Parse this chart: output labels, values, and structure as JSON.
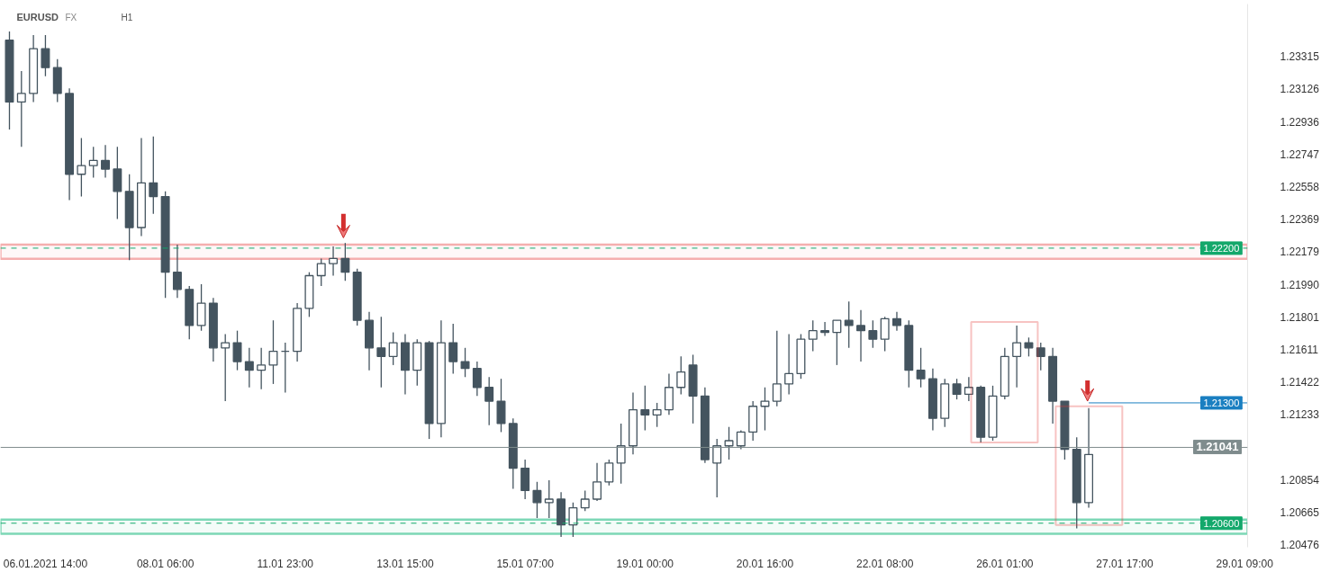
{
  "chart_data": {
    "type": "candlestick",
    "title": "EURUSD",
    "annotations": [
      "FX",
      "H1"
    ],
    "color": "#44545f",
    "categories": [
      null,
      null,
      null,
      "06.01.2021 14:00",
      null,
      null,
      null,
      null,
      null,
      null,
      null,
      null,
      null,
      "08.01 06:00",
      null,
      null,
      null,
      null,
      null,
      null,
      null,
      null,
      null,
      "11.01 23:00",
      null,
      null,
      null,
      null,
      null,
      null,
      null,
      null,
      null,
      "13.01 15:00",
      null,
      null,
      null,
      null,
      null,
      null,
      null,
      null,
      null,
      "15.01 07:00",
      null,
      null,
      null,
      null,
      null,
      null,
      null,
      null,
      null,
      "19.01 00:00",
      null,
      null,
      null,
      null,
      null,
      null,
      null,
      null,
      null,
      "20.01 16:00",
      null,
      null,
      null,
      null,
      null,
      null,
      null,
      null,
      null,
      "22.01 08:00",
      null,
      null,
      null,
      null,
      null,
      null,
      null,
      null,
      null,
      "26.01 01:00",
      null,
      null,
      null,
      null,
      null,
      null,
      null,
      null,
      null,
      "27.01 17:00",
      null,
      null,
      null,
      null,
      null,
      null,
      null,
      null,
      null,
      "29.01 09:00"
    ],
    "ohlc": [
      [
        1.2341,
        1.2346,
        1.2289,
        1.2305
      ],
      [
        1.2305,
        1.2323,
        1.2279,
        1.231
      ],
      [
        1.231,
        1.2344,
        1.2305,
        1.2336
      ],
      [
        1.2336,
        1.2344,
        1.232,
        1.2325
      ],
      [
        1.2325,
        1.233,
        1.2305,
        1.231
      ],
      [
        1.231,
        1.2313,
        1.2248,
        1.2263
      ],
      [
        1.2263,
        1.2284,
        1.225,
        1.2268
      ],
      [
        1.2268,
        1.2279,
        1.2261,
        1.2271
      ],
      [
        1.2271,
        1.228,
        1.2261,
        1.2266
      ],
      [
        1.2266,
        1.2279,
        1.2237,
        1.2253
      ],
      [
        1.2253,
        1.2263,
        1.2213,
        1.2232
      ],
      [
        1.2232,
        1.2284,
        1.2227,
        1.2258
      ],
      [
        1.2258,
        1.2285,
        1.224,
        1.225
      ],
      [
        1.225,
        1.2253,
        1.2191,
        1.2206
      ],
      [
        1.2206,
        1.2222,
        1.2191,
        1.2196
      ],
      [
        1.2196,
        1.2198,
        1.2167,
        1.2175
      ],
      [
        1.2175,
        1.2199,
        1.2172,
        1.2188
      ],
      [
        1.2188,
        1.2191,
        1.2154,
        1.2162
      ],
      [
        1.2162,
        1.217,
        1.2131,
        1.2165
      ],
      [
        1.2165,
        1.2172,
        1.2149,
        1.2154
      ],
      [
        1.2154,
        1.2162,
        1.2139,
        1.2149
      ],
      [
        1.2149,
        1.2162,
        1.2138,
        1.2152
      ],
      [
        1.2152,
        1.2178,
        1.2141,
        1.216
      ],
      [
        1.216,
        1.2165,
        1.2136,
        1.216
      ],
      [
        1.216,
        1.2188,
        1.2154,
        1.2185
      ],
      [
        1.2185,
        1.2206,
        1.218,
        1.2204
      ],
      [
        1.2204,
        1.2214,
        1.2198,
        1.2211
      ],
      [
        1.2211,
        1.2221,
        1.2204,
        1.2214
      ],
      [
        1.2214,
        1.2223,
        1.2201,
        1.2206
      ],
      [
        1.2206,
        1.2208,
        1.2175,
        1.2178
      ],
      [
        1.2178,
        1.2183,
        1.2149,
        1.2162
      ],
      [
        1.2162,
        1.218,
        1.2139,
        1.2157
      ],
      [
        1.2157,
        1.2171,
        1.2152,
        1.2165
      ],
      [
        1.2165,
        1.217,
        1.2135,
        1.2149
      ],
      [
        1.2149,
        1.2167,
        1.214,
        1.2165
      ],
      [
        1.2165,
        1.2166,
        1.2109,
        1.2118
      ],
      [
        1.2118,
        1.2178,
        1.211,
        1.2165
      ],
      [
        1.2165,
        1.2176,
        1.2147,
        1.2154
      ],
      [
        1.2154,
        1.2162,
        1.2145,
        1.215
      ],
      [
        1.215,
        1.2154,
        1.2134,
        1.2139
      ],
      [
        1.2139,
        1.2145,
        1.2117,
        1.2131
      ],
      [
        1.2131,
        1.2144,
        1.2113,
        1.2118
      ],
      [
        1.2118,
        1.2121,
        1.208,
        1.2092
      ],
      [
        1.2092,
        1.2097,
        1.2074,
        1.2079
      ],
      [
        1.2079,
        1.2084,
        1.2063,
        1.2072
      ],
      [
        1.2072,
        1.2085,
        1.2063,
        1.2074
      ],
      [
        1.2074,
        1.2078,
        1.2052,
        1.2059
      ],
      [
        1.2059,
        1.2072,
        1.2052,
        1.2069
      ],
      [
        1.2069,
        1.2079,
        1.2067,
        1.2074
      ],
      [
        1.2074,
        1.2095,
        1.2073,
        1.2084
      ],
      [
        1.2084,
        1.2097,
        1.2082,
        1.2095
      ],
      [
        1.2095,
        1.2118,
        1.2083,
        1.2105
      ],
      [
        1.2105,
        1.2136,
        1.21,
        1.2126
      ],
      [
        1.2126,
        1.214,
        1.2114,
        1.2123
      ],
      [
        1.2123,
        1.213,
        1.2116,
        1.2126
      ],
      [
        1.2126,
        1.2147,
        1.2123,
        1.2139
      ],
      [
        1.2139,
        1.2157,
        1.2135,
        1.2148
      ],
      [
        1.2152,
        1.2158,
        1.2118,
        1.2134
      ],
      [
        1.2134,
        1.2139,
        1.2095,
        1.2097
      ],
      [
        1.2095,
        1.2109,
        1.2075,
        1.2105
      ],
      [
        1.2105,
        1.2116,
        1.2097,
        1.2108
      ],
      [
        1.2105,
        1.2114,
        1.2103,
        1.2113
      ],
      [
        1.2113,
        1.2131,
        1.2108,
        1.2128
      ],
      [
        1.2128,
        1.2139,
        1.2114,
        1.2131
      ],
      [
        1.2131,
        1.2172,
        1.2128,
        1.2141
      ],
      [
        1.2141,
        1.217,
        1.2135,
        1.2147
      ],
      [
        1.2147,
        1.217,
        1.2144,
        1.2167
      ],
      [
        1.2167,
        1.2178,
        1.216,
        1.2172
      ],
      [
        1.2172,
        1.2177,
        1.2169,
        1.2171
      ],
      [
        1.2171,
        1.2178,
        1.2152,
        1.2178
      ],
      [
        1.2178,
        1.2189,
        1.2162,
        1.2175
      ],
      [
        1.2175,
        1.2184,
        1.2154,
        1.2172
      ],
      [
        1.2172,
        1.2178,
        1.2162,
        1.2167
      ],
      [
        1.2167,
        1.218,
        1.216,
        1.2179
      ],
      [
        1.2179,
        1.2183,
        1.2172,
        1.2175
      ],
      [
        1.2175,
        1.2178,
        1.2139,
        1.2149
      ],
      [
        1.2149,
        1.2162,
        1.2139,
        1.2144
      ],
      [
        1.2144,
        1.215,
        1.2114,
        1.2121
      ],
      [
        1.2121,
        1.2144,
        1.2116,
        1.2141
      ],
      [
        1.2141,
        1.2144,
        1.2132,
        1.2135
      ],
      [
        1.2135,
        1.2145,
        1.2131,
        1.2139
      ],
      [
        1.2139,
        1.214,
        1.2107,
        1.211
      ],
      [
        1.211,
        1.214,
        1.2108,
        1.2134
      ],
      [
        1.2134,
        1.2162,
        1.2132,
        1.2157
      ],
      [
        1.2157,
        1.2175,
        1.2139,
        1.2165
      ],
      [
        1.2165,
        1.2168,
        1.2157,
        1.2162
      ],
      [
        1.2162,
        1.2165,
        1.2149,
        1.2157
      ],
      [
        1.2157,
        1.2162,
        1.2118,
        1.2131
      ],
      [
        1.2131,
        1.2131,
        1.2097,
        1.2103
      ],
      [
        1.2103,
        1.211,
        1.2057,
        1.2072
      ],
      [
        1.2072,
        1.2127,
        1.2069,
        1.21
      ],
      null,
      null,
      null,
      null,
      null,
      null,
      null,
      null,
      null,
      null,
      null,
      null,
      null
    ],
    "ylim": [
      1.2046,
      1.2362
    ],
    "yticks": [
      {
        "value": 1.20476,
        "label": "1.20476"
      },
      {
        "value": 1.20665,
        "label": "1.20665"
      },
      {
        "value": 1.20854,
        "label": "1.20854"
      },
      {
        "value": 1.21233,
        "label": "1.21233"
      },
      {
        "value": 1.21422,
        "label": "1.21422"
      },
      {
        "value": 1.21611,
        "label": "1.21611"
      },
      {
        "value": 1.21801,
        "label": "1.21801"
      },
      {
        "value": 1.2199,
        "label": "1.21990"
      },
      {
        "value": 1.22179,
        "label": "1.22179"
      },
      {
        "value": 1.22369,
        "label": "1.22369"
      },
      {
        "value": 1.22558,
        "label": "1.22558"
      },
      {
        "value": 1.22747,
        "label": "1.22747"
      },
      {
        "value": 1.22936,
        "label": "1.22936"
      },
      {
        "value": 1.23126,
        "label": "1.23126"
      },
      {
        "value": 1.23315,
        "label": "1.23315"
      }
    ],
    "bands": [
      {
        "axis": "y",
        "from": 1.22138,
        "to": 1.22221,
        "color": "#f4a6a6"
      },
      {
        "axis": "y",
        "from": 1.20538,
        "to": 1.20621,
        "color": "#6fd3ae"
      }
    ],
    "ref_lines": [
      {
        "axis": "y",
        "value": 1.222,
        "label": "1.22200",
        "color": "#13a86b",
        "line_style": "dashed"
      },
      {
        "axis": "y",
        "value": 1.206,
        "label": "1.20600",
        "color": "#13a86b",
        "line_style": "dashed"
      },
      {
        "axis": "y",
        "value": 1.213,
        "label": "1.21300",
        "color": "#1a7fc1",
        "line_style": "solid"
      },
      {
        "axis": "y",
        "value": 1.21041,
        "label": "1.21041",
        "color": "#7f8c8d",
        "line_style": "solid"
      }
    ],
    "grid": false
  }
}
